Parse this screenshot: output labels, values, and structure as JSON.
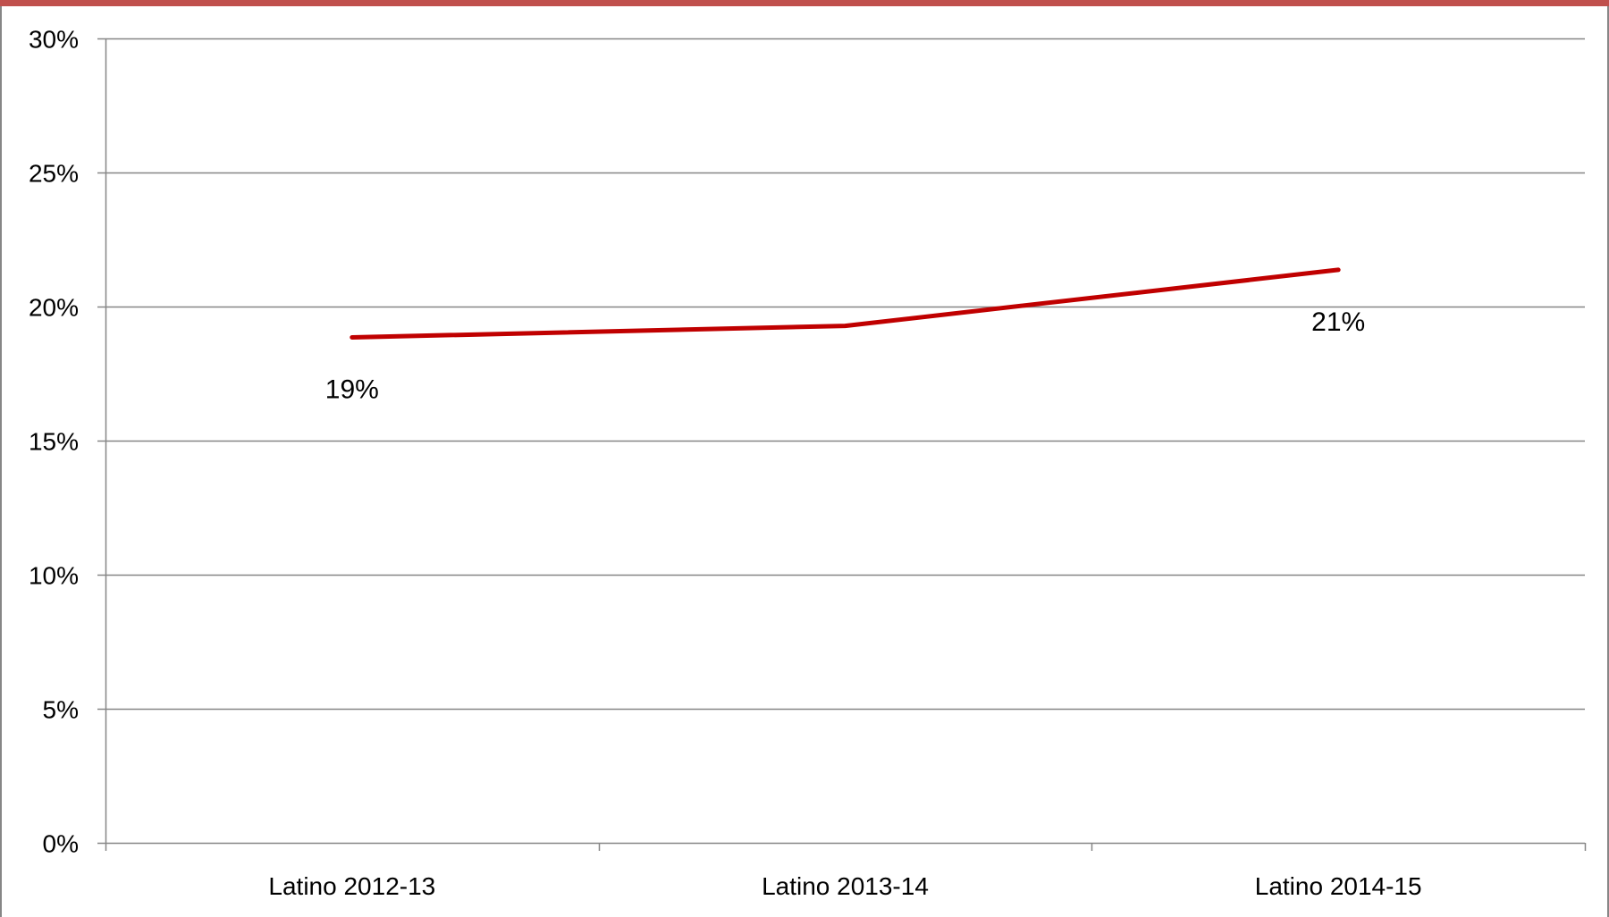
{
  "chart_data": {
    "type": "line",
    "categories": [
      "Latino 2012-13",
      "Latino 2013-14",
      "Latino 2014-15"
    ],
    "series": [
      {
        "values": [
          0.1885,
          0.1928,
          0.2137
        ],
        "data_labels": [
          "19%",
          "",
          "21%"
        ]
      }
    ],
    "ylim": [
      0,
      0.3
    ],
    "yticks": [
      0,
      0.05,
      0.1,
      0.15,
      0.2,
      0.25,
      0.3
    ],
    "ytick_labels": [
      "0%",
      "5%",
      "10%",
      "15%",
      "20%",
      "25%",
      "30%"
    ],
    "grid": true,
    "legend": false,
    "colors": {
      "line": "#c00000",
      "grid": "#868686",
      "axis": "#868686",
      "top_band": "#c0504d",
      "frame": "#868686"
    }
  }
}
